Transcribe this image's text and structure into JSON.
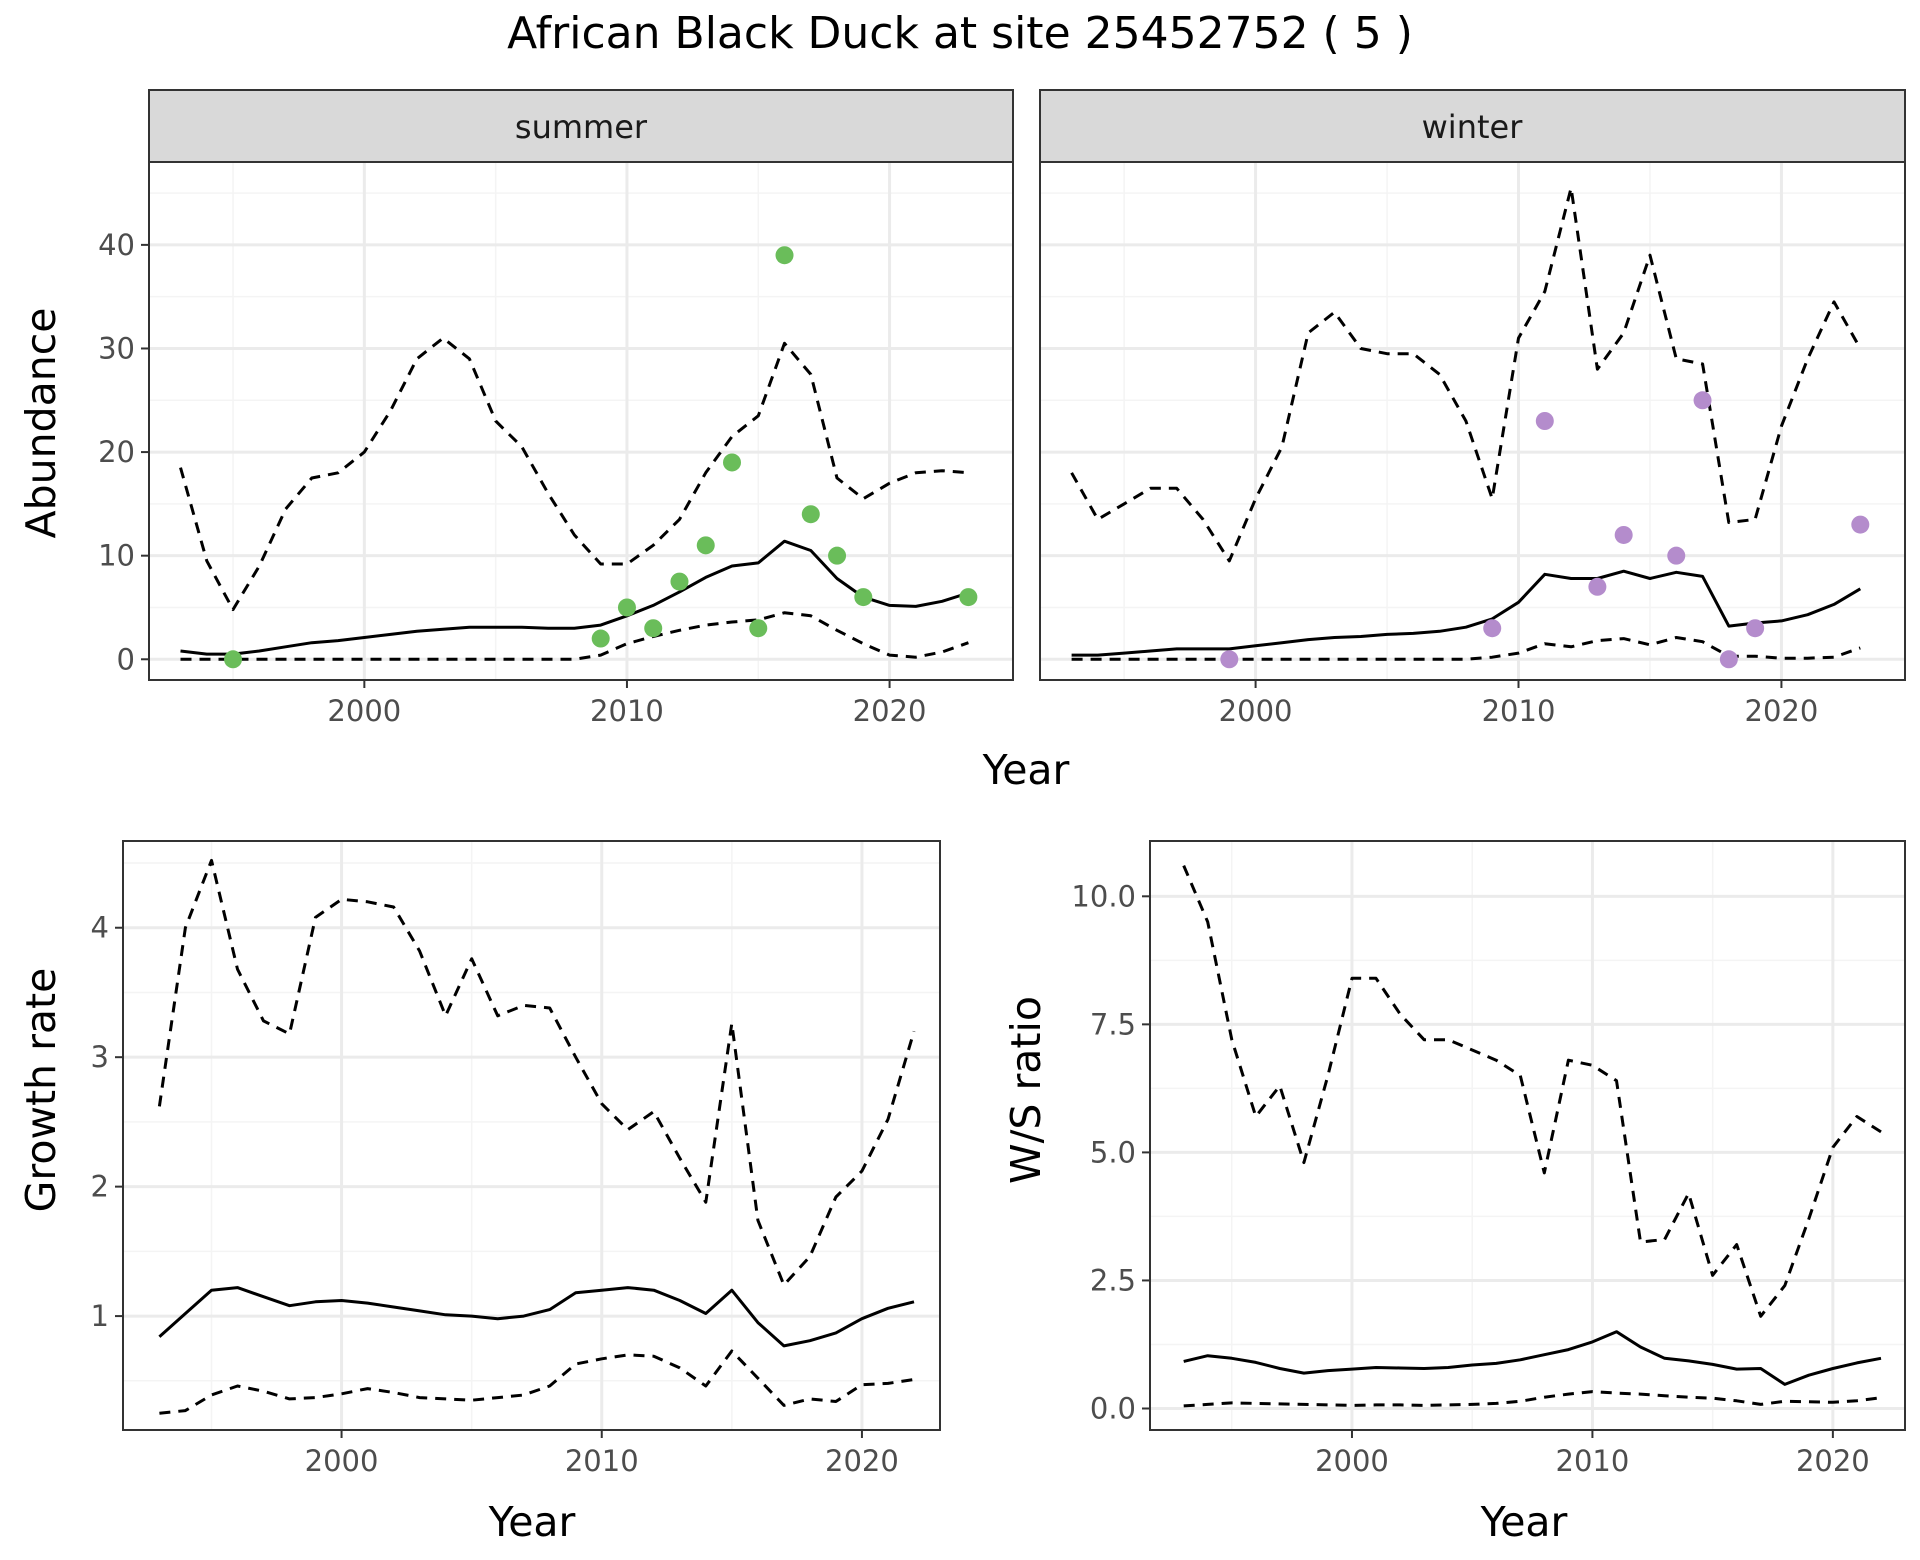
{
  "title": "African Black Duck at site 25452752 ( 5 )",
  "colors": {
    "summer_points": "#6abd5a",
    "winter_points": "#b48ccc",
    "line": "#000000",
    "grid_major": "#ebebeb",
    "grid_minor": "#f4f4f4",
    "strip_fill": "#d9d9d9"
  },
  "chart_data": [
    {
      "type": "line",
      "panel": "summer",
      "strip_label": "summer",
      "xlabel": "Year",
      "ylabel": "Abundance",
      "xlim": [
        1991.8,
        2024.7
      ],
      "ylim": [
        -2,
        48
      ],
      "x_ticks": [
        2000,
        2010,
        2020
      ],
      "y_ticks": [
        0,
        10,
        20,
        30,
        40
      ],
      "grid": true,
      "series": [
        {
          "role": "mean",
          "style": "solid",
          "x": [
            1993,
            1994,
            1995,
            1996,
            1997,
            1998,
            1999,
            2000,
            2001,
            2002,
            2003,
            2004,
            2005,
            2006,
            2007,
            2008,
            2009,
            2010,
            2011,
            2012,
            2013,
            2014,
            2015,
            2016,
            2017,
            2018,
            2019,
            2020,
            2021,
            2022,
            2023
          ],
          "y": [
            0.8,
            0.5,
            0.5,
            0.8,
            1.2,
            1.6,
            1.8,
            2.1,
            2.4,
            2.7,
            2.9,
            3.1,
            3.1,
            3.1,
            3.0,
            3.0,
            3.3,
            4.2,
            5.2,
            6.5,
            7.9,
            9.0,
            9.3,
            11.4,
            10.5,
            7.8,
            6.0,
            5.2,
            5.1,
            5.6,
            6.4
          ]
        },
        {
          "role": "upper",
          "style": "dashed",
          "x": [
            1993,
            1994,
            1995,
            1996,
            1997,
            1998,
            1999,
            2000,
            2001,
            2002,
            2003,
            2004,
            2005,
            2006,
            2007,
            2008,
            2009,
            2010,
            2011,
            2012,
            2013,
            2014,
            2015,
            2016,
            2017,
            2018,
            2019,
            2020,
            2021,
            2022,
            2023
          ],
          "y": [
            18.5,
            9.5,
            4.8,
            9.0,
            14.5,
            17.5,
            18.0,
            20.0,
            24.0,
            29.0,
            31.0,
            29.0,
            23.0,
            20.5,
            16.0,
            12.0,
            9.2,
            9.2,
            11.0,
            13.5,
            18.0,
            21.5,
            23.5,
            30.5,
            27.5,
            17.5,
            15.5,
            17.0,
            18.0,
            18.2,
            18.0
          ]
        },
        {
          "role": "lower",
          "style": "dashed",
          "x": [
            1993,
            1994,
            1995,
            1996,
            1997,
            1998,
            1999,
            2000,
            2001,
            2002,
            2003,
            2004,
            2005,
            2006,
            2007,
            2008,
            2009,
            2010,
            2011,
            2012,
            2013,
            2014,
            2015,
            2016,
            2017,
            2018,
            2019,
            2020,
            2021,
            2022,
            2023
          ],
          "y": [
            0,
            0,
            0,
            0,
            0,
            0,
            0,
            0,
            0,
            0,
            0,
            0,
            0,
            0,
            0,
            0,
            0.4,
            1.5,
            2.2,
            2.8,
            3.3,
            3.6,
            3.8,
            4.5,
            4.2,
            2.8,
            1.5,
            0.4,
            0.2,
            0.7,
            1.6
          ]
        }
      ],
      "points": {
        "name": "observed",
        "x": [
          1995,
          2009,
          2010,
          2011,
          2012,
          2013,
          2014,
          2015,
          2016,
          2017,
          2018,
          2019,
          2023
        ],
        "y": [
          0,
          2,
          5,
          3,
          7.5,
          11,
          19,
          3,
          39,
          14,
          10,
          6,
          6
        ]
      }
    },
    {
      "type": "line",
      "panel": "winter",
      "strip_label": "winter",
      "xlabel": "Year",
      "ylabel": "",
      "xlim": [
        1991.8,
        2024.7
      ],
      "ylim": [
        -2,
        48
      ],
      "x_ticks": [
        2000,
        2010,
        2020
      ],
      "y_ticks": [
        0,
        10,
        20,
        30,
        40
      ],
      "grid": true,
      "series": [
        {
          "role": "mean",
          "style": "solid",
          "x": [
            1993,
            1994,
            1995,
            1996,
            1997,
            1998,
            1999,
            2000,
            2001,
            2002,
            2003,
            2004,
            2005,
            2006,
            2007,
            2008,
            2009,
            2010,
            2011,
            2012,
            2013,
            2014,
            2015,
            2016,
            2017,
            2018,
            2019,
            2020,
            2021,
            2022,
            2023
          ],
          "y": [
            0.4,
            0.4,
            0.6,
            0.8,
            1.0,
            1.0,
            1.0,
            1.3,
            1.6,
            1.9,
            2.1,
            2.2,
            2.4,
            2.5,
            2.7,
            3.1,
            3.9,
            5.5,
            8.2,
            7.8,
            7.8,
            8.5,
            7.8,
            8.4,
            8.0,
            3.2,
            3.5,
            3.7,
            4.3,
            5.3,
            6.8
          ]
        },
        {
          "role": "upper",
          "style": "dashed",
          "x": [
            1993,
            1994,
            1995,
            1996,
            1997,
            1998,
            1999,
            2000,
            2001,
            2002,
            2003,
            2004,
            2005,
            2006,
            2007,
            2008,
            2009,
            2010,
            2011,
            2012,
            2013,
            2014,
            2015,
            2016,
            2017,
            2018,
            2019,
            2020,
            2021,
            2022,
            2023
          ],
          "y": [
            18.0,
            13.5,
            15.0,
            16.5,
            16.5,
            13.5,
            9.5,
            15.5,
            20.5,
            31.5,
            33.5,
            30.0,
            29.5,
            29.5,
            27.5,
            23.0,
            15.5,
            31.0,
            35.5,
            45.5,
            28.0,
            31.5,
            39.0,
            29.0,
            28.5,
            13.2,
            13.5,
            22.5,
            29.0,
            34.5,
            30.0
          ]
        },
        {
          "role": "lower",
          "style": "dashed",
          "x": [
            1993,
            1994,
            1995,
            1996,
            1997,
            1998,
            1999,
            2000,
            2001,
            2002,
            2003,
            2004,
            2005,
            2006,
            2007,
            2008,
            2009,
            2010,
            2011,
            2012,
            2013,
            2014,
            2015,
            2016,
            2017,
            2018,
            2019,
            2020,
            2021,
            2022,
            2023
          ],
          "y": [
            0,
            0,
            0,
            0,
            0,
            0,
            0,
            0,
            0,
            0,
            0,
            0,
            0,
            0,
            0,
            0,
            0.2,
            0.6,
            1.5,
            1.2,
            1.8,
            2.0,
            1.4,
            2.1,
            1.7,
            0.3,
            0.3,
            0.1,
            0.1,
            0.2,
            1.1
          ]
        }
      ],
      "points": {
        "name": "observed",
        "x": [
          1999,
          2009,
          2011,
          2013,
          2014,
          2016,
          2017,
          2018,
          2019,
          2023
        ],
        "y": [
          0,
          3,
          23,
          7,
          12,
          10,
          25,
          0,
          3,
          13
        ]
      }
    },
    {
      "type": "line",
      "panel": "growth",
      "xlabel": "Year",
      "ylabel": "Growth rate",
      "xlim": [
        1991.6,
        2023.0
      ],
      "ylim": [
        0.12,
        4.67
      ],
      "x_ticks": [
        2000,
        2010,
        2020
      ],
      "y_ticks": [
        1,
        2,
        3,
        4
      ],
      "grid": true,
      "series": [
        {
          "role": "mean",
          "style": "solid",
          "x": [
            1993,
            1994,
            1995,
            1996,
            1997,
            1998,
            1999,
            2000,
            2001,
            2002,
            2003,
            2004,
            2005,
            2006,
            2007,
            2008,
            2009,
            2010,
            2011,
            2012,
            2013,
            2014,
            2015,
            2016,
            2017,
            2018,
            2019,
            2020,
            2021,
            2022
          ],
          "y": [
            0.84,
            1.02,
            1.2,
            1.22,
            1.15,
            1.08,
            1.11,
            1.12,
            1.1,
            1.07,
            1.04,
            1.01,
            1.0,
            0.98,
            1.0,
            1.05,
            1.18,
            1.2,
            1.22,
            1.2,
            1.12,
            1.02,
            1.2,
            0.95,
            0.77,
            0.81,
            0.87,
            0.98,
            1.06,
            1.11
          ]
        },
        {
          "role": "upper",
          "style": "dashed",
          "x": [
            1993,
            1994,
            1995,
            1996,
            1997,
            1998,
            1999,
            2000,
            2001,
            2002,
            2003,
            2004,
            2005,
            2006,
            2007,
            2008,
            2009,
            2010,
            2011,
            2012,
            2013,
            2014,
            2015,
            2016,
            2017,
            2018,
            2019,
            2020,
            2021,
            2022
          ],
          "y": [
            2.62,
            4.0,
            4.52,
            3.68,
            3.28,
            3.18,
            4.08,
            4.22,
            4.2,
            4.16,
            3.82,
            3.32,
            3.76,
            3.32,
            3.4,
            3.38,
            3.0,
            2.64,
            2.44,
            2.58,
            2.22,
            1.88,
            3.26,
            1.74,
            1.24,
            1.46,
            1.92,
            2.12,
            2.52,
            3.2
          ]
        },
        {
          "role": "lower",
          "style": "dashed",
          "x": [
            1993,
            1994,
            1995,
            1996,
            1997,
            1998,
            1999,
            2000,
            2001,
            2002,
            2003,
            2004,
            2005,
            2006,
            2007,
            2008,
            2009,
            2010,
            2011,
            2012,
            2013,
            2014,
            2015,
            2016,
            2017,
            2018,
            2019,
            2020,
            2021,
            2022
          ],
          "y": [
            0.25,
            0.27,
            0.39,
            0.46,
            0.42,
            0.36,
            0.37,
            0.4,
            0.44,
            0.41,
            0.37,
            0.36,
            0.35,
            0.37,
            0.39,
            0.46,
            0.63,
            0.67,
            0.7,
            0.69,
            0.6,
            0.46,
            0.73,
            0.52,
            0.31,
            0.36,
            0.34,
            0.47,
            0.48,
            0.51
          ]
        }
      ]
    },
    {
      "type": "line",
      "panel": "ratio",
      "xlabel": "Year",
      "ylabel": "W/S ratio",
      "xlim": [
        1991.6,
        2023.0
      ],
      "ylim": [
        -0.42,
        11.08
      ],
      "x_ticks": [
        2000,
        2010,
        2020
      ],
      "y_ticks": [
        0.0,
        2.5,
        5.0,
        7.5,
        10.0
      ],
      "y_tick_labels": [
        "0.0",
        "2.5",
        "5.0",
        "7.5",
        "10.0"
      ],
      "grid": true,
      "series": [
        {
          "role": "mean",
          "style": "solid",
          "x": [
            1993,
            1994,
            1995,
            1996,
            1997,
            1998,
            1999,
            2000,
            2001,
            2002,
            2003,
            2004,
            2005,
            2006,
            2007,
            2008,
            2009,
            2010,
            2011,
            2012,
            2013,
            2014,
            2015,
            2016,
            2017,
            2018,
            2019,
            2020,
            2021,
            2022
          ],
          "y": [
            0.92,
            1.03,
            0.98,
            0.9,
            0.78,
            0.69,
            0.74,
            0.77,
            0.8,
            0.79,
            0.78,
            0.8,
            0.85,
            0.88,
            0.95,
            1.05,
            1.15,
            1.3,
            1.5,
            1.2,
            0.98,
            0.93,
            0.86,
            0.77,
            0.78,
            0.47,
            0.65,
            0.78,
            0.89,
            0.98
          ]
        },
        {
          "role": "upper",
          "style": "dashed",
          "x": [
            1993,
            1994,
            1995,
            1996,
            1997,
            1998,
            1999,
            2000,
            2001,
            2002,
            2003,
            2004,
            2005,
            2006,
            2007,
            2008,
            2009,
            2010,
            2011,
            2012,
            2013,
            2014,
            2015,
            2016,
            2017,
            2018,
            2019,
            2020,
            2021,
            2022
          ],
          "y": [
            10.6,
            9.5,
            7.2,
            5.7,
            6.3,
            4.8,
            6.5,
            8.4,
            8.4,
            7.7,
            7.2,
            7.2,
            7.0,
            6.8,
            6.5,
            4.6,
            6.8,
            6.7,
            6.4,
            3.25,
            3.3,
            4.2,
            2.6,
            3.2,
            1.8,
            2.4,
            3.7,
            5.1,
            5.7,
            5.4
          ]
        },
        {
          "role": "lower",
          "style": "dashed",
          "x": [
            1993,
            1994,
            1995,
            1996,
            1997,
            1998,
            1999,
            2000,
            2001,
            2002,
            2003,
            2004,
            2005,
            2006,
            2007,
            2008,
            2009,
            2010,
            2011,
            2012,
            2013,
            2014,
            2015,
            2016,
            2017,
            2018,
            2019,
            2020,
            2021,
            2022
          ],
          "y": [
            0.05,
            0.08,
            0.11,
            0.1,
            0.09,
            0.08,
            0.07,
            0.06,
            0.07,
            0.07,
            0.06,
            0.07,
            0.08,
            0.1,
            0.14,
            0.22,
            0.28,
            0.33,
            0.3,
            0.28,
            0.25,
            0.22,
            0.2,
            0.15,
            0.08,
            0.14,
            0.13,
            0.12,
            0.15,
            0.21
          ]
        }
      ]
    }
  ]
}
